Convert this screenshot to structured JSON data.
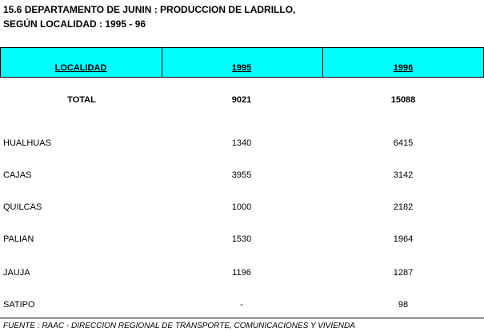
{
  "header": {
    "title": [
      "15.6 DEPARTAMENTO DE JUNIN : PRODUCCION DE LADRILLO,",
      "SEGÚN LOCALIDAD : 1995 - 96"
    ]
  },
  "table": {
    "columns": [
      "LOCALIDAD",
      "1995",
      "1996"
    ],
    "total": [
      "TOTAL",
      9021,
      15088
    ],
    "rows": [
      [
        "HUALHUAS",
        1340,
        6415
      ],
      [
        "CAJAS",
        3955,
        3142
      ],
      [
        "QUILCAS",
        1000,
        2182
      ],
      [
        "PALIAN",
        1530,
        1964
      ],
      [
        "JAUJA",
        1196,
        1287
      ],
      [
        "SATIPO",
        "-",
        98
      ]
    ]
  },
  "source": "FUENTE : RAAC - DIRECCION REGIONAL DE TRANSPORTE, COMUNICACIONES Y VIVIENDA"
}
